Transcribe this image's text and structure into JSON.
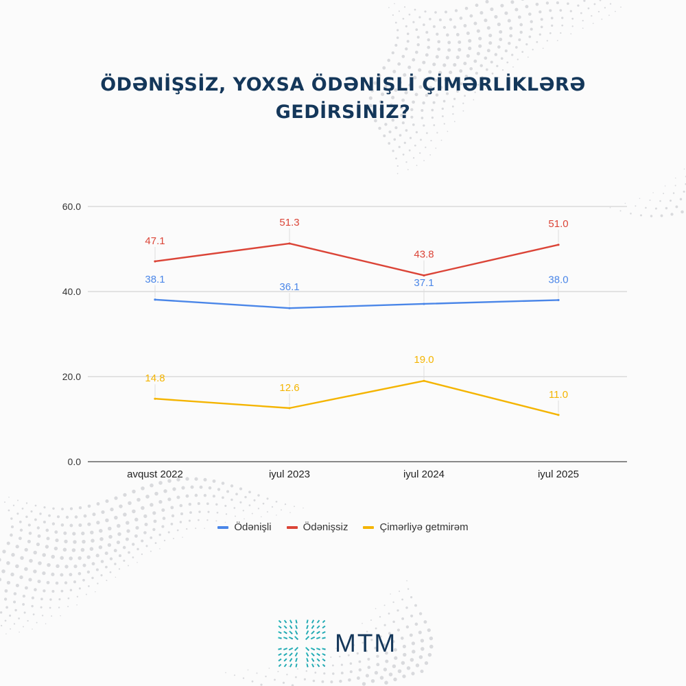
{
  "chart_data": {
    "type": "line",
    "title": "ÖDƏNİŞSİZ, YOXSA ÖDƏNİŞLİ ÇİMƏRLİKLƏRƏ GEDİRSİNİZ?",
    "categories": [
      "avqust 2022",
      "iyul 2023",
      "iyul 2024",
      "iyul 2025"
    ],
    "series": [
      {
        "name": "Ödənişli",
        "color": "#4a86e8",
        "values": [
          38.1,
          36.1,
          37.1,
          38.0
        ]
      },
      {
        "name": "Ödənişsiz",
        "color": "#db4437",
        "values": [
          47.1,
          51.3,
          43.8,
          51.0
        ]
      },
      {
        "name": "Çimərliyə getmirəm",
        "color": "#f4b400",
        "values": [
          14.8,
          12.6,
          19.0,
          11.0
        ]
      }
    ],
    "ylim": [
      0,
      60
    ],
    "yticks": [
      "0.0",
      "20.0",
      "40.0",
      "60.0"
    ],
    "grid": true,
    "legend_position": "bottom"
  },
  "brand": {
    "name": "MTM"
  }
}
